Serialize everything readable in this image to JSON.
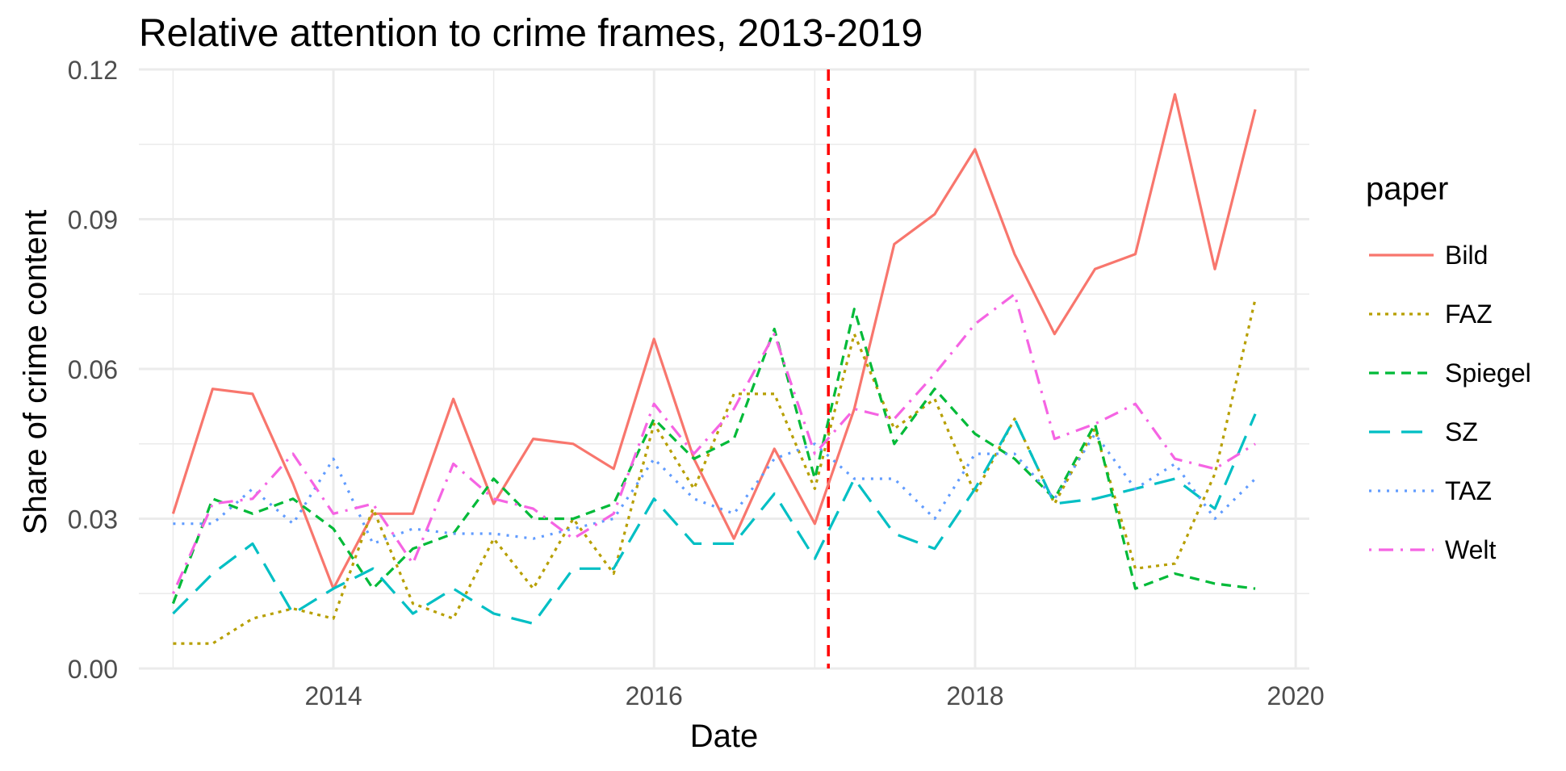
{
  "chart_data": {
    "type": "line",
    "title": "Relative attention to crime frames, 2013-2019",
    "xlabel": "Date",
    "ylabel": "Share of crime content",
    "x_axis": "date",
    "xlim": [
      "2012-10-15",
      "2020-02-01"
    ],
    "ylim": [
      0,
      0.12
    ],
    "x_ticks": [
      {
        "label": "2014",
        "date": "2014-01-01"
      },
      {
        "label": "2016",
        "date": "2016-01-01"
      },
      {
        "label": "2018",
        "date": "2018-01-01"
      },
      {
        "label": "2020",
        "date": "2020-01-01"
      }
    ],
    "y_ticks": [
      {
        "label": "0.00",
        "value": 0
      },
      {
        "label": "0.03",
        "value": 0.03
      },
      {
        "label": "0.06",
        "value": 0.06
      },
      {
        "label": "0.09",
        "value": 0.09
      },
      {
        "label": "0.12",
        "value": 0.12
      }
    ],
    "grid": true,
    "legend": {
      "title": "paper",
      "position": "right"
    },
    "reference_line": {
      "date": "2017-02-01",
      "color": "#FF0000",
      "style": "dashed"
    },
    "x": [
      "2013-01-01",
      "2013-04-01",
      "2013-07-01",
      "2013-10-01",
      "2014-01-01",
      "2014-04-01",
      "2014-07-01",
      "2014-10-01",
      "2015-01-01",
      "2015-04-01",
      "2015-07-01",
      "2015-10-01",
      "2016-01-01",
      "2016-04-01",
      "2016-07-01",
      "2016-10-01",
      "2017-01-01",
      "2017-04-01",
      "2017-07-01",
      "2017-10-01",
      "2018-01-01",
      "2018-04-01",
      "2018-07-01",
      "2018-10-01",
      "2019-01-01",
      "2019-04-01",
      "2019-07-01",
      "2019-10-01"
    ],
    "series": [
      {
        "name": "Bild",
        "color": "#F8766D",
        "dash": "solid",
        "values": [
          0.031,
          0.056,
          0.055,
          0.037,
          0.016,
          0.031,
          0.031,
          0.054,
          0.033,
          0.046,
          0.045,
          0.04,
          0.066,
          0.042,
          0.026,
          0.044,
          0.029,
          0.052,
          0.085,
          0.091,
          0.104,
          0.083,
          0.067,
          0.08,
          0.083,
          0.115,
          0.08,
          0.112
        ]
      },
      {
        "name": "FAZ",
        "color": "#B79F00",
        "dash": "dotted",
        "values": [
          0.005,
          0.005,
          0.01,
          0.012,
          0.01,
          0.032,
          0.013,
          0.01,
          0.026,
          0.016,
          0.03,
          0.019,
          0.049,
          0.036,
          0.055,
          0.055,
          0.036,
          0.067,
          0.048,
          0.054,
          0.035,
          0.05,
          0.033,
          0.048,
          0.02,
          0.021,
          0.039,
          0.074
        ]
      },
      {
        "name": "Spiegel",
        "color": "#00BA38",
        "dash": "dashed",
        "values": [
          0.013,
          0.034,
          0.031,
          0.034,
          0.028,
          0.016,
          0.024,
          0.027,
          0.038,
          0.03,
          0.03,
          0.033,
          0.05,
          0.042,
          0.046,
          0.068,
          0.038,
          0.072,
          0.045,
          0.056,
          0.047,
          0.042,
          0.034,
          0.049,
          0.016,
          0.019,
          0.017,
          0.016
        ]
      },
      {
        "name": "SZ",
        "color": "#00BFC4",
        "dash": "longdash",
        "values": [
          0.011,
          0.019,
          0.025,
          0.011,
          0.016,
          0.02,
          0.011,
          0.016,
          0.011,
          0.009,
          0.02,
          0.02,
          0.034,
          0.025,
          0.025,
          0.035,
          0.022,
          0.038,
          0.027,
          0.024,
          0.036,
          0.05,
          0.033,
          0.034,
          0.036,
          0.038,
          0.032,
          0.051
        ]
      },
      {
        "name": "TAZ",
        "color": "#619CFF",
        "dash": "dotted2",
        "values": [
          0.029,
          0.029,
          0.036,
          0.029,
          0.042,
          0.025,
          0.028,
          0.027,
          0.027,
          0.026,
          0.028,
          0.03,
          0.042,
          0.034,
          0.031,
          0.042,
          0.045,
          0.038,
          0.038,
          0.03,
          0.043,
          0.043,
          0.034,
          0.047,
          0.036,
          0.041,
          0.03,
          0.038
        ]
      },
      {
        "name": "Welt",
        "color": "#F564E3",
        "dash": "dotdash",
        "values": [
          0.015,
          0.033,
          0.034,
          0.043,
          0.031,
          0.033,
          0.021,
          0.041,
          0.034,
          0.032,
          0.026,
          0.031,
          0.053,
          0.043,
          0.052,
          0.067,
          0.043,
          0.052,
          0.05,
          0.059,
          0.069,
          0.075,
          0.046,
          0.049,
          0.053,
          0.042,
          0.04,
          0.045
        ]
      }
    ]
  }
}
